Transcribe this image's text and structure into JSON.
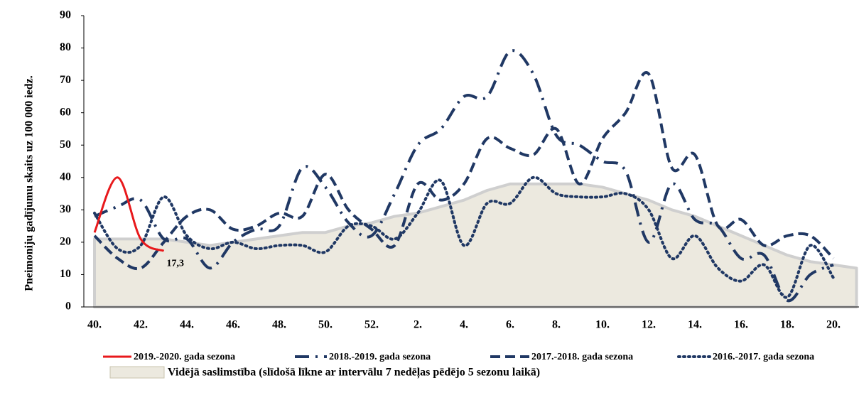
{
  "chart_data": {
    "type": "line",
    "y_label": "Pneimoniju gadījumu skaits uz 100 000 iedz.",
    "categories": [
      "40.",
      null,
      "42.",
      null,
      "44.",
      null,
      "46.",
      null,
      "48.",
      null,
      "50.",
      null,
      "52.",
      null,
      "2.",
      null,
      "4.",
      null,
      "6.",
      null,
      "8.",
      null,
      "10.",
      null,
      "12.",
      null,
      "14.",
      null,
      "16.",
      null,
      "18.",
      null,
      "20.",
      null
    ],
    "ylim": [
      0,
      90
    ],
    "yticks": [
      0,
      10,
      20,
      30,
      40,
      50,
      60,
      70,
      80,
      90
    ],
    "series": [
      {
        "name": "Vidējā saslimstība (slīdošā līkne ar intervālu 7 nedēļas pēdējo 5 sezonu laikā)",
        "style": "area",
        "color": "#ece9df",
        "values": [
          21,
          21,
          21,
          21,
          20,
          19,
          20,
          21,
          22,
          23,
          23,
          25,
          26,
          28,
          29,
          31,
          33,
          36,
          38,
          38,
          38,
          38,
          37,
          35,
          33,
          30,
          28,
          25,
          22,
          19,
          16,
          14,
          13,
          12
        ]
      },
      {
        "name": "2016.-2017. gada sezona",
        "style": "dot",
        "color": "#203864",
        "values": [
          29,
          18,
          19,
          34,
          22,
          18,
          20,
          18,
          19,
          19,
          17,
          25,
          25,
          21,
          29,
          39,
          19,
          32,
          32,
          40,
          35,
          34,
          34,
          35,
          30,
          15,
          22,
          12,
          8,
          13,
          3,
          19,
          9,
          null
        ]
      },
      {
        "name": "2017.-2018. gada sezona",
        "style": "dash",
        "color": "#203864",
        "values": [
          22,
          15,
          12,
          20,
          28,
          30,
          24,
          25,
          29,
          28,
          41,
          30,
          24,
          19,
          38,
          33,
          38,
          52,
          49,
          47,
          55,
          38,
          52,
          60,
          72,
          43,
          47,
          25,
          27,
          19,
          22,
          22,
          15,
          null
        ]
      },
      {
        "name": "2018.-2019. gada sezona",
        "style": "dash-dot",
        "color": "#203864",
        "values": [
          28,
          31,
          33,
          21,
          21,
          12,
          20,
          24,
          25,
          43,
          37,
          26,
          22,
          35,
          50,
          55,
          65,
          65,
          79,
          72,
          53,
          50,
          45,
          42,
          20,
          38,
          27,
          25,
          15,
          16,
          2,
          10,
          13,
          null
        ]
      },
      {
        "name": "2019.-2020. gada sezona",
        "style": "solid",
        "color": "#e8191c",
        "values": [
          23,
          40,
          21,
          17.3,
          null,
          null,
          null,
          null,
          null,
          null,
          null,
          null,
          null,
          null,
          null,
          null,
          null,
          null,
          null,
          null,
          null,
          null,
          null,
          null,
          null,
          null,
          null,
          null,
          null,
          null,
          null,
          null,
          null,
          null
        ],
        "value_labels": [
          null,
          null,
          null,
          "17,3",
          null,
          null,
          null,
          null,
          null,
          null,
          null,
          null,
          null,
          null,
          null,
          null,
          null,
          null,
          null,
          null,
          null,
          null,
          null,
          null,
          null,
          null,
          null,
          null,
          null,
          null,
          null,
          null,
          null,
          null
        ]
      }
    ],
    "legend_order": [
      4,
      3,
      2,
      1,
      0
    ]
  }
}
